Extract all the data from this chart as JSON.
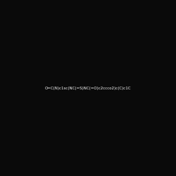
{
  "smiles": "O=C(N)c1sc(NC(=S)NC(=O)c2ccco2)c(C)c1C",
  "image_size": 250,
  "background_color": "#0a0a0a",
  "atom_colors": {
    "N": "#4040ff",
    "O": "#ff2020",
    "S": "#c0a000"
  },
  "title": ""
}
